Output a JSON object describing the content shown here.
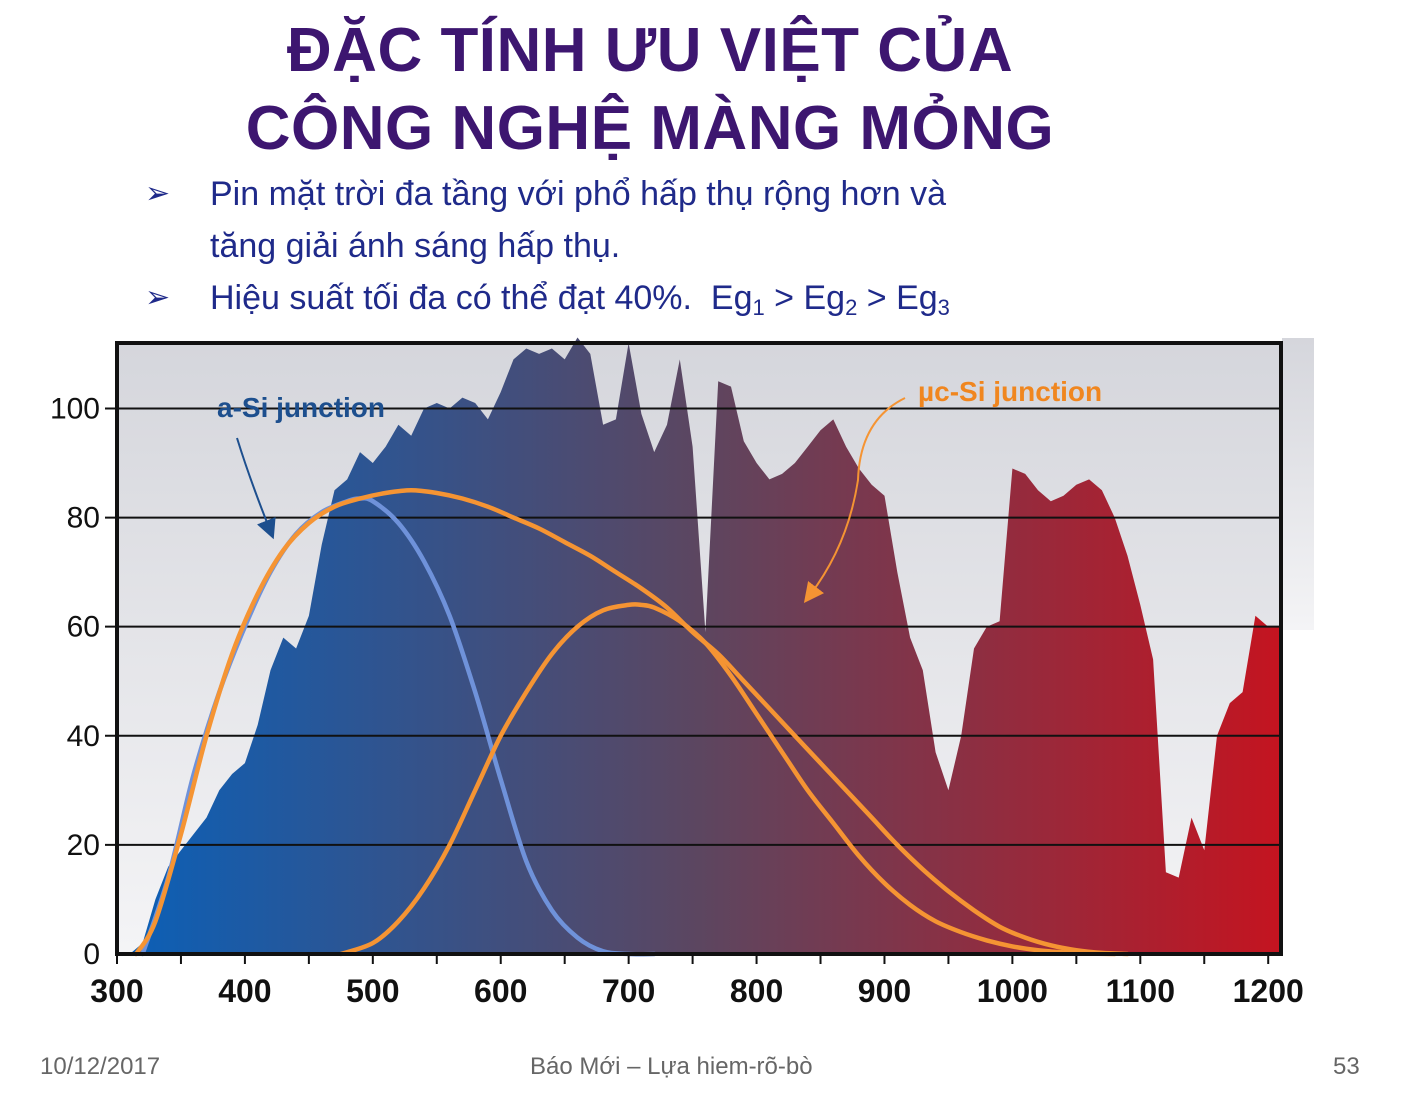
{
  "slide": {
    "title_line1": "ĐẶC TÍNH ƯU VIỆT CỦA",
    "title_line2": "CÔNG NGHỆ MÀNG MỎNG",
    "bullet1_line1": "Pin mặt trời đa tầng với phổ hấp thụ rộng hơn và",
    "bullet1_line2": "tăng giải ánh sáng hấp thụ.",
    "bullet2_text": "Hiệu suất tối đa có thể đạt 40%.",
    "bullet2_eq": [
      "Eg",
      "1",
      " > Eg",
      "2",
      " > Eg",
      "3"
    ],
    "bullet_icon": "arrow-bullet-icon"
  },
  "footer": {
    "date": "10/12/2017",
    "center": "Báo Mới – Lựa hiem-rõ-bò",
    "page": "53"
  },
  "chart_data": {
    "type": "area",
    "xlim": [
      300,
      1210
    ],
    "ylim": [
      0,
      112
    ],
    "x_ticks": [
      300,
      400,
      500,
      600,
      700,
      800,
      900,
      1000,
      1100,
      1200
    ],
    "y_ticks": [
      0,
      20,
      40,
      60,
      80,
      100
    ],
    "grid": "horizontal",
    "colors": {
      "spectrum_start": "#0a60b8",
      "spectrum_mid": "#5c4660",
      "spectrum_end": "#c41420",
      "a_si": "#6f92da",
      "uc_si": "#f59433",
      "frame": "#111111"
    },
    "solar_spectrum": {
      "x": [
        300,
        310,
        320,
        330,
        340,
        350,
        360,
        370,
        380,
        390,
        400,
        410,
        420,
        430,
        440,
        450,
        460,
        470,
        480,
        490,
        500,
        510,
        520,
        530,
        540,
        550,
        560,
        570,
        580,
        590,
        600,
        610,
        620,
        630,
        640,
        650,
        660,
        670,
        680,
        690,
        700,
        710,
        720,
        730,
        740,
        750,
        760,
        770,
        780,
        790,
        800,
        810,
        820,
        830,
        840,
        850,
        860,
        870,
        880,
        890,
        900,
        910,
        920,
        930,
        940,
        950,
        960,
        970,
        980,
        990,
        1000,
        1010,
        1020,
        1030,
        1040,
        1050,
        1060,
        1070,
        1080,
        1090,
        1100,
        1110,
        1120,
        1130,
        1140,
        1150,
        1160,
        1170,
        1180,
        1190,
        1200,
        1210
      ],
      "y": [
        0,
        0,
        2,
        10,
        16,
        19,
        22,
        25,
        30,
        33,
        35,
        42,
        52,
        58,
        56,
        62,
        75,
        85,
        87,
        92,
        90,
        93,
        97,
        95,
        100,
        101,
        100,
        102,
        101,
        98,
        103,
        109,
        111,
        110,
        111,
        109,
        113,
        110,
        97,
        98,
        112,
        99,
        92,
        97,
        109,
        93,
        59,
        105,
        104,
        94,
        90,
        87,
        88,
        90,
        93,
        96,
        98,
        93,
        89,
        86,
        84,
        70,
        58,
        52,
        37,
        30,
        40,
        56,
        60,
        61,
        89,
        88,
        85,
        83,
        84,
        86,
        87,
        85,
        80,
        73,
        64,
        54,
        15,
        14,
        25,
        19,
        40,
        46,
        48,
        62,
        60,
        60
      ]
    },
    "series": [
      {
        "name": "a-Si junction",
        "x": [
          320,
          340,
          360,
          380,
          400,
          420,
          440,
          460,
          480,
          490,
          500,
          520,
          540,
          560,
          580,
          600,
          620,
          640,
          660,
          680,
          700,
          720
        ],
        "y": [
          0,
          14,
          33,
          48,
          60,
          70,
          77,
          81,
          83,
          83.5,
          83,
          79,
          72,
          62,
          48,
          32,
          17,
          8,
          3,
          0.5,
          0,
          0
        ]
      },
      {
        "name": "µc-Si junction",
        "x": [
          315,
          330,
          350,
          370,
          390,
          410,
          430,
          450,
          470,
          490,
          510,
          530,
          550,
          570,
          590,
          610,
          630,
          650,
          670,
          690,
          710,
          730,
          750,
          770,
          790,
          810,
          830,
          850,
          870,
          890,
          910,
          930,
          950,
          970,
          990,
          1010,
          1030,
          1050,
          1070,
          1090
        ],
        "y": [
          0,
          6,
          22,
          40,
          55,
          66,
          74,
          79,
          82,
          83.5,
          84.5,
          85,
          84.5,
          83.5,
          82,
          80,
          78,
          75.5,
          73,
          70,
          67,
          63.5,
          59,
          55,
          50,
          45,
          40,
          35,
          30,
          25,
          20,
          15.5,
          11.5,
          8,
          5,
          3,
          1.6,
          0.7,
          0.2,
          0
        ]
      },
      {
        "name": "",
        "x": [
          475,
          500,
          520,
          540,
          560,
          580,
          600,
          620,
          640,
          660,
          680,
          700,
          710,
          720,
          740,
          760,
          780,
          800,
          820,
          840,
          860,
          880,
          900,
          920,
          940,
          960,
          980,
          1000,
          1020,
          1040,
          1060,
          1080
        ],
        "y": [
          0,
          2,
          6,
          12,
          20,
          30,
          40,
          48,
          55,
          60,
          63,
          64,
          64,
          63.5,
          61,
          57,
          51,
          44,
          37,
          30,
          24,
          18,
          13,
          9,
          6,
          4,
          2.5,
          1.4,
          0.7,
          0.3,
          0.1,
          0
        ]
      }
    ],
    "annotations": [
      "a-Si junction",
      "µc-Si junction"
    ]
  }
}
